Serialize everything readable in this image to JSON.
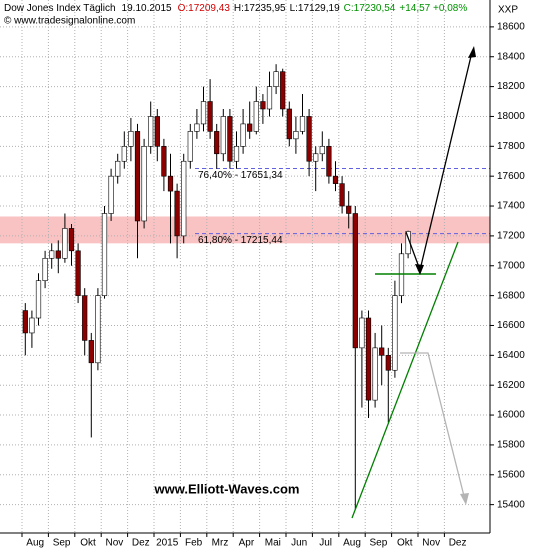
{
  "chart_data": {
    "type": "candlestick",
    "title": "Dow Jones Index Täglich",
    "date": "19.10.2015",
    "quote": {
      "open": "O:17209,43",
      "high": "H:17235,95",
      "low": "L:17129,19",
      "close": "C:17230,54",
      "change": "+14,57 +0,08%"
    },
    "source": "© www.tradesignalonline.com",
    "axis_label": "XXP",
    "watermark": "www.Elliott-Waves.com",
    "categories": [
      "Aug",
      null,
      null,
      null,
      "Sep",
      null,
      null,
      null,
      "Okt",
      null,
      null,
      null,
      "Nov",
      null,
      null,
      null,
      "Dez",
      null,
      null,
      null,
      "2015",
      null,
      null,
      null,
      "Feb",
      null,
      null,
      null,
      "Mrz",
      null,
      null,
      null,
      "Apr",
      null,
      null,
      null,
      "Mai",
      null,
      null,
      null,
      "Jun",
      null,
      null,
      null,
      "Jul",
      null,
      null,
      null,
      "Aug",
      null,
      null,
      null,
      "Sep",
      null,
      null,
      null,
      "Okt",
      null,
      null,
      null,
      "Nov",
      null,
      null,
      null,
      "Dez",
      null,
      null,
      null
    ],
    "open": [
      16700,
      16550,
      16650,
      16900,
      17050,
      17100,
      17050,
      17250,
      17100,
      16800,
      16500,
      16350,
      16800,
      17350,
      17600,
      17700,
      17800,
      17900,
      17300,
      17800,
      18000,
      17800,
      17600,
      17500,
      17200,
      17700,
      17900,
      17950,
      18100,
      17900,
      17750,
      18000,
      17700,
      17800,
      17950,
      17900,
      18100,
      18050,
      18200,
      18300,
      18050,
      17850,
      17900,
      18000,
      17700,
      17750,
      17800,
      17600,
      17550,
      17400,
      17350,
      16450,
      16650,
      16100,
      16450,
      16400,
      16300,
      16800,
      17080,
      null,
      null,
      null,
      null,
      null,
      null,
      null,
      null,
      null
    ],
    "high": [
      16750,
      16700,
      16950,
      17100,
      17150,
      17170,
      17350,
      17280,
      17150,
      16850,
      16550,
      16850,
      17400,
      17650,
      17750,
      17900,
      17990,
      17950,
      17850,
      18100,
      18050,
      17850,
      17750,
      17550,
      17750,
      17950,
      18050,
      18200,
      18250,
      17950,
      18050,
      18050,
      17900,
      18050,
      18100,
      18200,
      18150,
      18300,
      18350,
      18320,
      18100,
      18000,
      18150,
      18050,
      17800,
      17900,
      17850,
      17700,
      17600,
      17500,
      17400,
      16700,
      16700,
      16550,
      16600,
      16450,
      16900,
      17150,
      17235,
      null,
      null,
      null,
      null,
      null,
      null,
      null,
      null,
      null
    ],
    "low": [
      16400,
      16450,
      16600,
      16850,
      16980,
      16950,
      17020,
      17000,
      16750,
      16400,
      15850,
      16300,
      16780,
      17300,
      17550,
      17650,
      17700,
      17050,
      17250,
      17750,
      17700,
      17500,
      17150,
      17050,
      17150,
      17650,
      17850,
      17900,
      17850,
      17650,
      17700,
      17650,
      17650,
      17750,
      17850,
      17880,
      17950,
      18000,
      18150,
      18000,
      17800,
      17750,
      17880,
      17600,
      17500,
      17700,
      17550,
      17500,
      17350,
      17250,
      15370,
      16050,
      15980,
      16050,
      16200,
      15950,
      16250,
      16750,
      17050,
      null,
      null,
      null,
      null,
      null,
      null,
      null,
      null,
      null
    ],
    "close": [
      16550,
      16650,
      16900,
      17050,
      17100,
      17050,
      17250,
      17100,
      16800,
      16500,
      16350,
      16800,
      17350,
      17600,
      17700,
      17800,
      17900,
      17300,
      17800,
      18000,
      17800,
      17600,
      17500,
      17200,
      17700,
      17900,
      17950,
      18100,
      17900,
      17750,
      18000,
      17700,
      17800,
      17950,
      17900,
      18100,
      18050,
      18200,
      18300,
      18050,
      17850,
      17900,
      18000,
      17700,
      17750,
      17800,
      17600,
      17550,
      17400,
      17350,
      16450,
      16650,
      16100,
      16450,
      16400,
      16300,
      16800,
      17080,
      17230,
      null,
      null,
      null,
      null,
      null,
      null,
      null,
      null,
      null
    ],
    "up_color": "#ffffff",
    "down_color": "#8b0000",
    "ylim": [
      15210,
      18780
    ],
    "yticks": [
      15400,
      15600,
      15800,
      16000,
      16200,
      16400,
      16600,
      16800,
      17000,
      17200,
      17400,
      17600,
      17800,
      18000,
      18200,
      18400,
      18600
    ],
    "grid": true,
    "fib_levels": [
      {
        "value": 17651.34,
        "label": "76,40% - 17651,34"
      },
      {
        "value": 17215.44,
        "label": "61,80% - 17215,44"
      }
    ],
    "resistance_zone": [
      17150,
      17330
    ]
  }
}
